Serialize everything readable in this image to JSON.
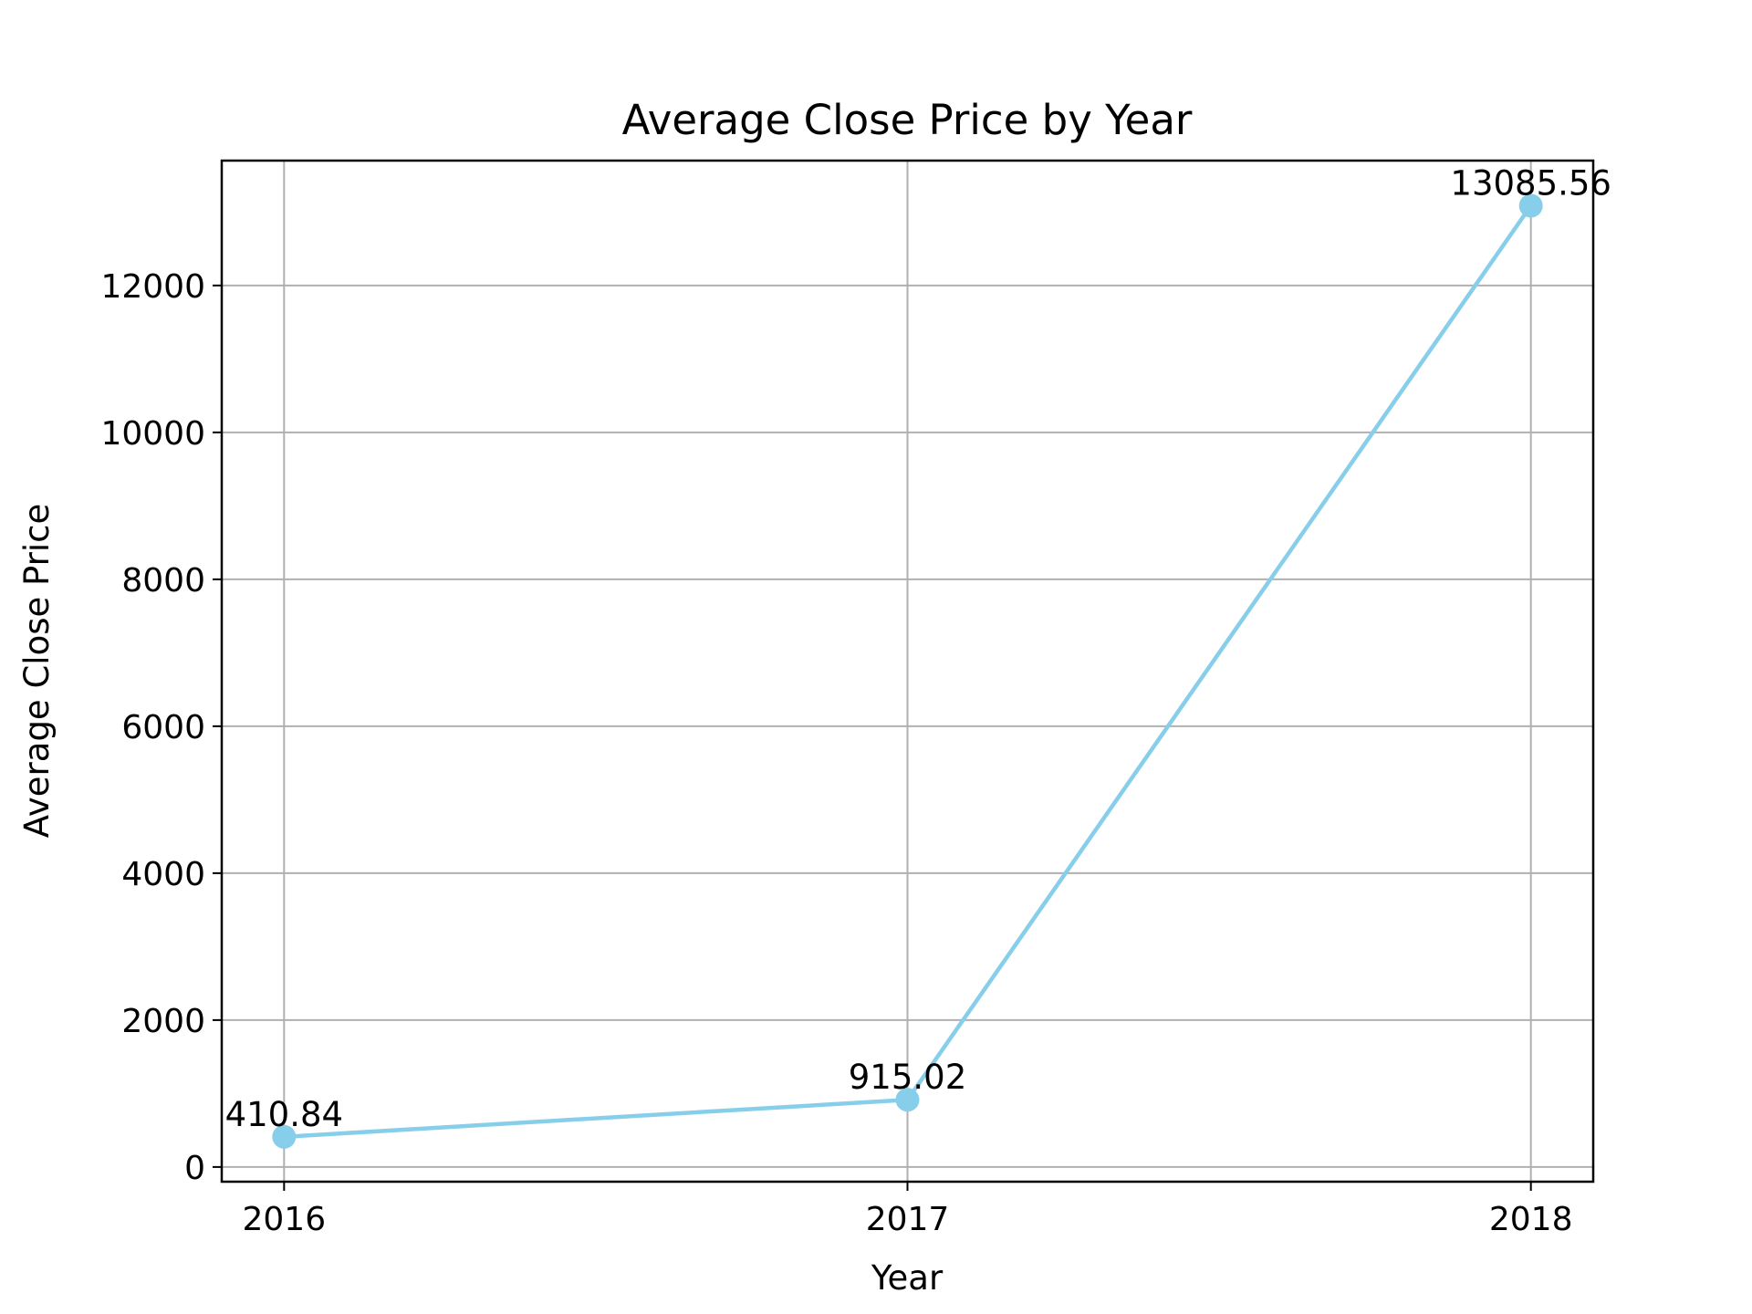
{
  "chart_data": {
    "type": "line",
    "title": "Average Close Price by Year",
    "xlabel": "Year",
    "ylabel": "Average Close Price",
    "categories": [
      "2016",
      "2017",
      "2018"
    ],
    "series": [
      {
        "values": [
          410.84,
          915.02,
          13085.56
        ],
        "data_labels": [
          "410.84",
          "915.02",
          "13085.56"
        ],
        "color": "#87CEEB",
        "marker": "circle"
      }
    ],
    "ylim": [
      -200,
      13700
    ],
    "yticks": [
      0,
      2000,
      4000,
      6000,
      8000,
      10000,
      12000
    ],
    "ytick_labels": [
      "0",
      "2000",
      "4000",
      "6000",
      "8000",
      "10000",
      "12000"
    ],
    "grid": true,
    "legend": "none"
  }
}
